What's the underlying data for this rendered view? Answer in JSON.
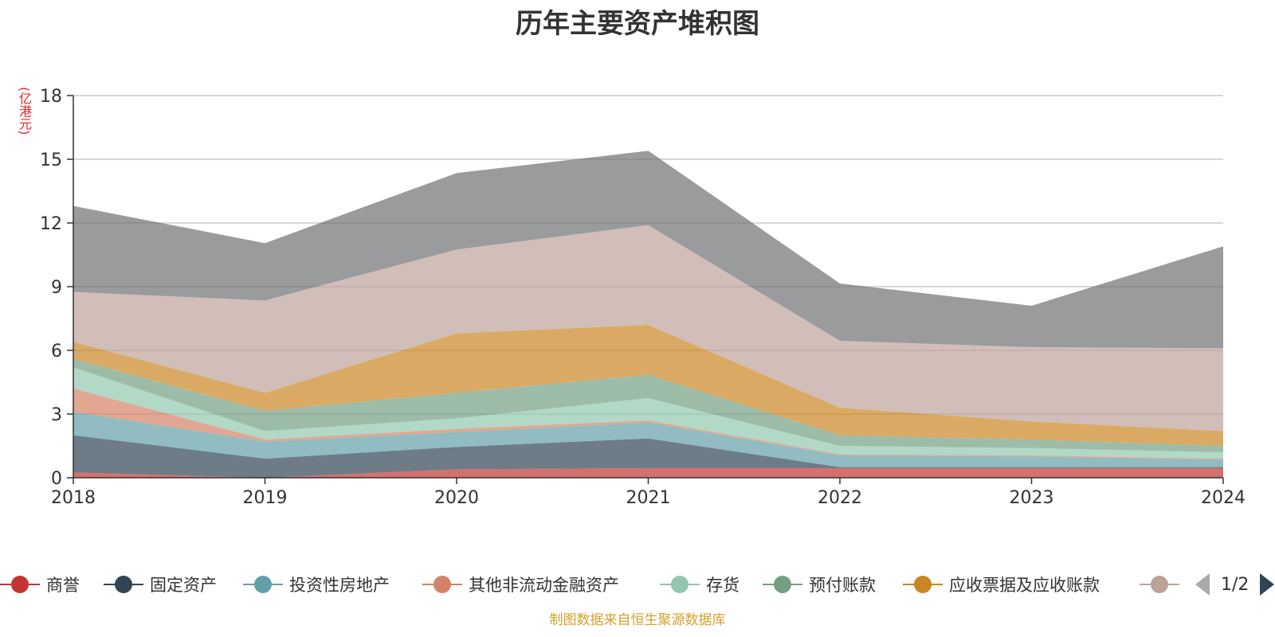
{
  "chart_data": {
    "type": "area",
    "stacked": true,
    "title": "历年主要资产堆积图",
    "y_unit_label": "(亿港元)",
    "ylim": [
      0,
      18
    ],
    "yticks": [
      0,
      3,
      6,
      9,
      12,
      15,
      18
    ],
    "x": [
      "2018",
      "2019",
      "2020",
      "2021",
      "2022",
      "2023",
      "2024"
    ],
    "grid": true,
    "legend_position": "bottom",
    "series": [
      {
        "name": "商誉",
        "color": "#c23531",
        "values": [
          0.25,
          0.0,
          0.4,
          0.45,
          0.45,
          0.45,
          0.45
        ]
      },
      {
        "name": "固定资产",
        "color": "#2f4554",
        "values": [
          1.75,
          0.9,
          1.05,
          1.4,
          0.05,
          0.05,
          0.05
        ]
      },
      {
        "name": "投资性房地产",
        "color": "#61a0a8",
        "values": [
          1.1,
          0.8,
          0.7,
          0.75,
          0.55,
          0.5,
          0.35
        ]
      },
      {
        "name": "其他非流动金融资产",
        "color": "#d48265",
        "values": [
          1.1,
          0.1,
          0.15,
          0.1,
          0.05,
          0.05,
          0.05
        ]
      },
      {
        "name": "存货",
        "color": "#91c7ae",
        "values": [
          1.0,
          0.4,
          0.5,
          1.05,
          0.4,
          0.35,
          0.3
        ]
      },
      {
        "name": "预付账款",
        "color": "#749f83",
        "values": [
          0.4,
          0.95,
          1.2,
          1.1,
          0.5,
          0.4,
          0.3
        ]
      },
      {
        "name": "应收票据及应收账款",
        "color": "#ca8622",
        "values": [
          0.8,
          0.85,
          2.8,
          2.35,
          1.3,
          0.85,
          0.7
        ]
      },
      {
        "name": "",
        "color": "#bda29a",
        "values": [
          2.35,
          4.35,
          3.95,
          4.7,
          3.15,
          3.5,
          3.9
        ]
      },
      {
        "name": "",
        "color": "#6e7074",
        "values": [
          4.05,
          2.7,
          3.6,
          3.5,
          2.7,
          1.95,
          4.8
        ]
      }
    ]
  },
  "legend": {
    "page_indicator": "1/2"
  },
  "source_note": "制图数据来自恒生聚源数据库"
}
